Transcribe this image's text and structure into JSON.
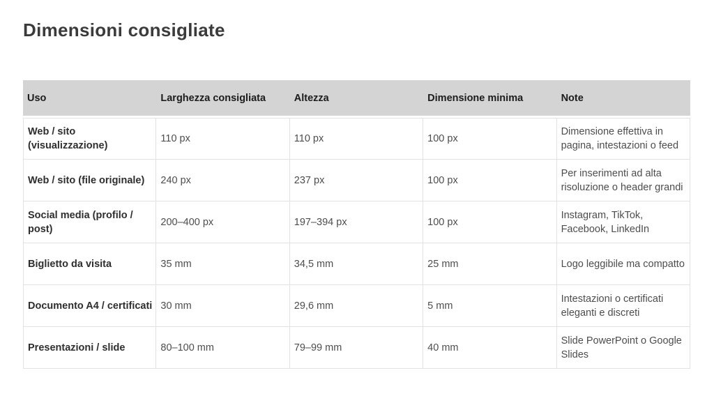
{
  "page": {
    "title": "Dimensioni consigliate"
  },
  "table": {
    "columns": [
      {
        "key": "uso",
        "label": "Uso"
      },
      {
        "key": "larghezza",
        "label": "Larghezza consigliata"
      },
      {
        "key": "altezza",
        "label": "Altezza"
      },
      {
        "key": "minima",
        "label": "Dimensione minima"
      },
      {
        "key": "note",
        "label": "Note"
      }
    ],
    "rows": [
      {
        "uso": "Web / sito (visualizzazione)",
        "larghezza": "110 px",
        "altezza": "110 px",
        "minima": "100 px",
        "note": "Dimensione effettiva in pagina, intestazioni o feed"
      },
      {
        "uso": "Web / sito (file originale)",
        "larghezza": "240 px",
        "altezza": "237 px",
        "minima": "100 px",
        "note": "Per inserimenti ad alta risoluzione o header grandi"
      },
      {
        "uso": "Social media (profilo / post)",
        "larghezza": "200–400 px",
        "altezza": "197–394 px",
        "minima": "100 px",
        "note": "Instagram, TikTok, Facebook, LinkedIn"
      },
      {
        "uso": "Biglietto da visita",
        "larghezza": "35 mm",
        "altezza": "34,5 mm",
        "minima": "25 mm",
        "note": "Logo leggibile ma compatto"
      },
      {
        "uso": "Documento A4 / certificati",
        "larghezza": "30 mm",
        "altezza": "29,6 mm",
        "minima": "5 mm",
        "note": "Intestazioni o certificati eleganti e discreti"
      },
      {
        "uso": "Presentazioni / slide",
        "larghezza": "80–100 mm",
        "altezza": "79–99 mm",
        "minima": "40 mm",
        "note": "Slide PowerPoint o Google Slides"
      }
    ]
  },
  "colors": {
    "header_bg": "#d4d4d4",
    "header_text": "#1c1c1c",
    "row_label_text": "#2e2e2e",
    "cell_text": "#4d4d4d",
    "border": "#e2e2e2",
    "title_text": "#3b3b3b",
    "page_bg": "#ffffff"
  }
}
